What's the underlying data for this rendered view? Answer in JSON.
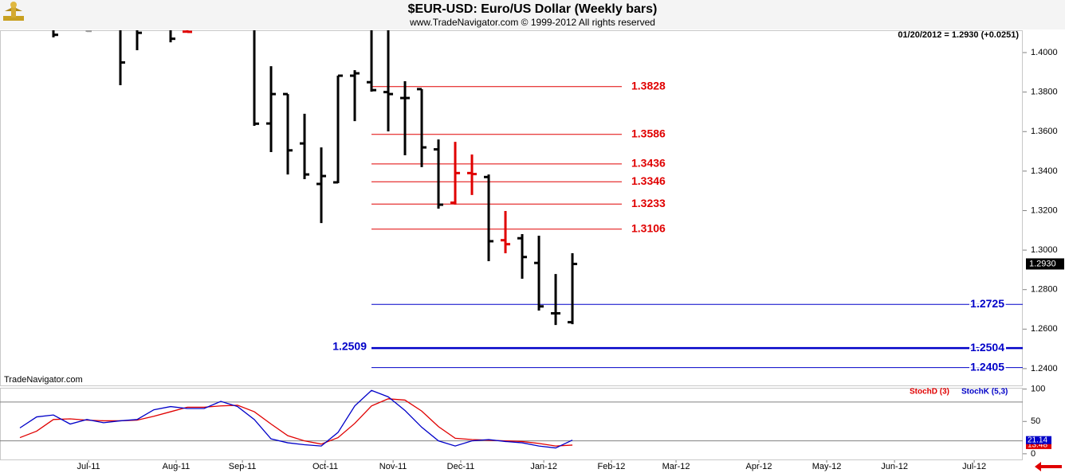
{
  "chart_data": [
    {
      "type": "ohlc",
      "title": "$EUR-USD:  Euro/US Dollar  (Weekly bars)",
      "subtitle": "www.TradeNavigator.com © 1999-2012 All rights reserved",
      "last_quote": "01/20/2012 = 1.2930 (+0.0251)",
      "last_price": {
        "value": 1.293,
        "label": "1.2930"
      },
      "watermark": "TradeNavigator.com",
      "x": [
        0,
        2,
        4,
        5,
        7,
        8,
        12,
        13,
        14,
        15,
        16,
        17,
        18,
        19,
        20,
        21,
        22,
        23,
        24,
        25,
        26,
        27,
        28,
        29,
        30,
        31
      ],
      "open": [
        1.415,
        1.415,
        1.42,
        1.415,
        1.412,
        1.4106,
        1.42,
        1.3641,
        1.379,
        1.354,
        1.3335,
        1.3343,
        1.3883,
        1.385,
        1.38,
        1.377,
        1.3815,
        1.351,
        1.324,
        1.339,
        1.337,
        1.305,
        1.306,
        1.2935,
        1.268,
        1.2635
      ],
      "high": [
        1.42,
        1.42,
        1.42,
        1.42,
        1.42,
        1.42,
        1.42,
        1.3931,
        1.379,
        1.369,
        1.352,
        1.3883,
        1.3911,
        1.42,
        1.42,
        1.3855,
        1.3815,
        1.356,
        1.3548,
        1.3484,
        1.3383,
        1.3198,
        1.3081,
        1.3073,
        1.2879,
        1.2984
      ],
      "low": [
        1.4077,
        1.4105,
        1.3835,
        1.4012,
        1.4052,
        1.4101,
        1.3629,
        1.3496,
        1.3383,
        1.3359,
        1.3137,
        1.3339,
        1.3653,
        1.3802,
        1.3601,
        1.348,
        1.342,
        1.321,
        1.323,
        1.3279,
        1.2944,
        1.2984,
        1.2855,
        1.2694,
        1.2621,
        1.2625
      ],
      "close": [
        1.409,
        1.411,
        1.395,
        1.41,
        1.407,
        1.4105,
        1.364,
        1.379,
        1.3505,
        1.3383,
        1.3375,
        1.3883,
        1.3895,
        1.381,
        1.379,
        1.377,
        1.352,
        1.323,
        1.339,
        1.3385,
        1.3045,
        1.303,
        1.2965,
        1.2715,
        1.268,
        1.293
      ],
      "colors": [
        "#000000",
        "#999999",
        "#000000",
        "#000000",
        "#000000",
        "#e00000",
        "#000000",
        "#000000",
        "#000000",
        "#000000",
        "#000000",
        "#000000",
        "#000000",
        "#000000",
        "#000000",
        "#000000",
        "#000000",
        "#000000",
        "#e00000",
        "#e00000",
        "#000000",
        "#e00000",
        "#000000",
        "#000000",
        "#000000",
        "#000000"
      ],
      "xlim": [
        -3.19,
        57.9
      ],
      "ylim": [
        1.2311,
        1.4113
      ],
      "yticks": [
        {
          "value": 1.24,
          "label": "1.2400"
        },
        {
          "value": 1.26,
          "label": "1.2600"
        },
        {
          "value": 1.28,
          "label": "1.2800"
        },
        {
          "value": 1.3,
          "label": "1.3000"
        },
        {
          "value": 1.32,
          "label": "1.3200"
        },
        {
          "value": 1.34,
          "label": "1.3400"
        },
        {
          "value": 1.36,
          "label": "1.3600"
        },
        {
          "value": 1.38,
          "label": "1.3800"
        },
        {
          "value": 1.4,
          "label": "1.4000"
        }
      ],
      "levels": [
        {
          "value": 1.3828,
          "color": "#e00000",
          "x": [
            19,
            33.95
          ]
        },
        {
          "value": 1.3586,
          "color": "#e00000",
          "x": [
            19,
            33.95
          ]
        },
        {
          "value": 1.3436,
          "color": "#e00000",
          "x": [
            19,
            33.95
          ]
        },
        {
          "value": 1.3346,
          "color": "#e00000",
          "x": [
            19,
            33.95
          ]
        },
        {
          "value": 1.3233,
          "color": "#e00000",
          "x": [
            19,
            33.95
          ]
        },
        {
          "value": 1.3106,
          "color": "#e00000",
          "x": [
            19,
            33.95
          ]
        },
        {
          "value": 1.2725,
          "color": "#0000c8",
          "x": [
            19,
            57.9
          ]
        },
        {
          "value": 1.2504,
          "color": "#0000c8",
          "x": [
            19,
            57.9
          ],
          "style": "bold"
        },
        {
          "value": 1.2405,
          "color": "#0000c8",
          "x": [
            19,
            57.9
          ]
        }
      ],
      "left_labels": [
        {
          "value": 1.2509,
          "color": "#0000c8",
          "x": 19
        }
      ]
    },
    {
      "type": "line",
      "x": [
        -2,
        -1,
        0,
        1,
        2,
        3,
        4,
        5,
        6,
        7,
        8,
        9,
        10,
        11,
        12,
        13,
        14,
        15,
        16,
        17,
        18,
        19,
        20,
        21,
        22,
        23,
        24,
        25,
        26,
        27,
        28,
        29,
        30,
        31
      ],
      "series": [
        {
          "name": "StochD (3)",
          "color": "#e00000",
          "values": [
            25,
            35,
            53,
            54,
            52,
            51,
            51,
            52,
            58,
            65,
            72,
            72,
            74,
            75,
            65,
            46,
            28,
            20,
            15,
            25,
            47,
            74,
            85,
            83,
            66,
            42,
            24,
            22,
            21,
            20,
            19,
            16,
            12,
            13.48
          ]
        },
        {
          "name": "StochK (5,3)",
          "color": "#0000c8",
          "values": [
            40,
            57,
            60,
            46,
            53,
            48,
            51,
            53,
            68,
            73,
            70,
            70,
            81,
            73,
            53,
            23,
            17,
            14,
            12,
            33,
            74,
            98,
            88,
            67,
            41,
            20,
            12,
            20,
            22,
            19,
            17,
            12,
            9,
            21.14
          ]
        }
      ],
      "xlim": [
        -3.19,
        57.9
      ],
      "ylim": [
        -10,
        102
      ],
      "yticks": [
        0,
        50,
        100
      ],
      "levels": [
        20,
        80
      ],
      "xticks": [
        {
          "value": 2.1,
          "label": "Jul-11"
        },
        {
          "value": 7.33,
          "label": "Aug-11"
        },
        {
          "value": 11.29,
          "label": "Sep-11"
        },
        {
          "value": 16.24,
          "label": "Oct-11"
        },
        {
          "value": 20.29,
          "label": "Nov-11"
        },
        {
          "value": 24.33,
          "label": "Dec-11"
        },
        {
          "value": 29.29,
          "label": "Jan-12"
        },
        {
          "value": 33.33,
          "label": "Feb-12"
        },
        {
          "value": 37.19,
          "label": "Mar-12"
        },
        {
          "value": 42.14,
          "label": "Apr-12"
        },
        {
          "value": 46.19,
          "label": "May-12"
        },
        {
          "value": 50.24,
          "label": "Jun-12"
        },
        {
          "value": 55.0,
          "label": "Jul-12"
        }
      ]
    }
  ]
}
